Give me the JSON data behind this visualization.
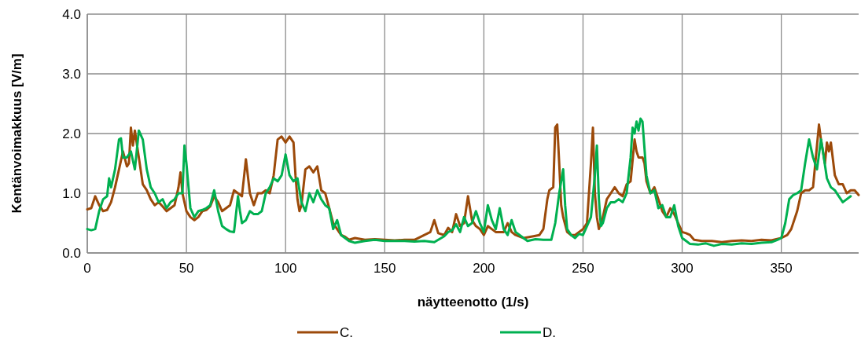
{
  "chart_data": {
    "type": "line",
    "xlabel": "näytteenotto (1/s)",
    "ylabel": "Kentänvoimakkuus [V/m]",
    "xlim": [
      0,
      389
    ],
    "xticks": [
      0,
      50,
      100,
      150,
      200,
      250,
      300,
      350
    ],
    "ylim": [
      0,
      4
    ],
    "yticks": [
      {
        "value": 0,
        "label": "0.0"
      },
      {
        "value": 1,
        "label": "1.0"
      },
      {
        "value": 2,
        "label": "2.0"
      },
      {
        "value": 3,
        "label": "3.0"
      },
      {
        "value": 4,
        "label": "4.0"
      }
    ],
    "grid": true,
    "legend": "bottom",
    "line_style": "solid",
    "series": [
      {
        "name": "C.",
        "color": "#9c4a0a",
        "x": [
          0,
          2,
          4,
          6,
          8,
          10,
          12,
          14,
          16,
          18,
          20,
          21,
          22,
          23,
          24,
          26,
          28,
          30,
          32,
          34,
          36,
          38,
          40,
          42,
          44,
          46,
          47,
          48,
          50,
          52,
          54,
          56,
          58,
          60,
          62,
          64,
          66,
          68,
          70,
          72,
          74,
          76,
          78,
          80,
          82,
          84,
          86,
          88,
          90,
          92,
          94,
          96,
          98,
          100,
          102,
          104,
          105,
          106,
          107,
          108,
          110,
          112,
          114,
          116,
          118,
          120,
          122,
          124,
          126,
          128,
          130,
          132,
          135,
          140,
          145,
          150,
          155,
          160,
          165,
          170,
          173,
          175,
          177,
          180,
          182,
          184,
          186,
          188,
          190,
          192,
          194,
          196,
          198,
          200,
          202,
          204,
          206,
          210,
          212,
          214,
          216,
          220,
          225,
          228,
          230,
          232,
          233,
          235,
          236,
          237,
          238,
          239,
          240,
          242,
          244,
          246,
          248,
          250,
          252,
          254,
          255,
          256,
          257,
          258,
          260,
          262,
          264,
          266,
          268,
          270,
          272,
          274,
          276,
          277,
          278,
          280,
          281,
          282,
          284,
          286,
          288,
          290,
          292,
          294,
          296,
          298,
          300,
          302,
          304,
          306,
          310,
          315,
          320,
          325,
          330,
          335,
          340,
          345,
          350,
          353,
          355,
          358,
          360,
          362,
          364,
          366,
          368,
          369,
          370,
          372,
          373,
          374,
          375,
          377,
          379,
          381,
          383,
          385,
          387,
          389
        ],
        "values": [
          0.73,
          0.75,
          0.95,
          0.8,
          0.7,
          0.72,
          0.85,
          1.1,
          1.4,
          1.7,
          1.45,
          1.5,
          2.1,
          1.8,
          2.05,
          1.6,
          1.15,
          1.05,
          0.9,
          0.8,
          0.85,
          0.78,
          0.7,
          0.75,
          0.8,
          1.1,
          1.35,
          1.0,
          0.7,
          0.6,
          0.55,
          0.6,
          0.7,
          0.72,
          0.78,
          0.95,
          0.85,
          0.7,
          0.75,
          0.8,
          1.05,
          1.0,
          0.95,
          1.57,
          1.0,
          0.8,
          1.0,
          1.0,
          1.05,
          1.0,
          1.3,
          1.9,
          1.95,
          1.85,
          1.95,
          1.85,
          1.3,
          0.9,
          0.7,
          0.8,
          1.4,
          1.45,
          1.35,
          1.45,
          1.05,
          1.0,
          0.75,
          0.5,
          0.4,
          0.3,
          0.27,
          0.22,
          0.25,
          0.22,
          0.23,
          0.22,
          0.21,
          0.22,
          0.22,
          0.3,
          0.35,
          0.55,
          0.33,
          0.3,
          0.42,
          0.35,
          0.65,
          0.45,
          0.5,
          0.95,
          0.55,
          0.45,
          0.4,
          0.3,
          0.45,
          0.4,
          0.35,
          0.35,
          0.5,
          0.35,
          0.3,
          0.25,
          0.28,
          0.3,
          0.4,
          0.9,
          1.05,
          1.1,
          2.1,
          2.15,
          1.5,
          0.8,
          0.6,
          0.35,
          0.3,
          0.3,
          0.35,
          0.4,
          0.5,
          1.5,
          2.1,
          1.0,
          0.6,
          0.4,
          0.6,
          0.9,
          1.0,
          1.1,
          1.0,
          0.95,
          1.15,
          1.2,
          1.9,
          1.7,
          1.6,
          1.6,
          1.5,
          1.2,
          1.0,
          1.1,
          0.9,
          0.7,
          0.6,
          0.75,
          0.65,
          0.5,
          0.35,
          0.33,
          0.3,
          0.22,
          0.2,
          0.2,
          0.18,
          0.2,
          0.21,
          0.2,
          0.22,
          0.21,
          0.25,
          0.3,
          0.4,
          0.7,
          1.0,
          1.05,
          1.05,
          1.1,
          1.8,
          2.15,
          1.9,
          1.5,
          1.85,
          1.7,
          1.85,
          1.3,
          1.15,
          1.15,
          1.0,
          1.05,
          1.05,
          0.97
        ]
      },
      {
        "name": "D.",
        "color": "#00b050",
        "x": [
          0,
          2,
          4,
          6,
          8,
          10,
          11,
          12,
          14,
          16,
          17,
          18,
          20,
          22,
          24,
          26,
          28,
          30,
          32,
          34,
          36,
          38,
          40,
          42,
          44,
          46,
          48,
          49,
          50,
          52,
          54,
          56,
          58,
          60,
          62,
          64,
          66,
          68,
          70,
          72,
          74,
          76,
          77,
          78,
          80,
          82,
          84,
          86,
          88,
          90,
          92,
          94,
          96,
          98,
          100,
          102,
          104,
          106,
          108,
          110,
          112,
          114,
          116,
          118,
          120,
          122,
          124,
          126,
          128,
          130,
          132,
          135,
          140,
          145,
          150,
          160,
          165,
          170,
          175,
          180,
          182,
          184,
          186,
          188,
          190,
          192,
          194,
          196,
          198,
          200,
          202,
          204,
          206,
          208,
          210,
          212,
          214,
          216,
          220,
          222,
          226,
          230,
          234,
          236,
          238,
          240,
          241,
          242,
          244,
          246,
          248,
          250,
          252,
          254,
          256,
          257,
          258,
          259,
          260,
          262,
          264,
          266,
          268,
          270,
          272,
          274,
          275,
          276,
          277,
          278,
          279,
          280,
          282,
          284,
          286,
          288,
          290,
          292,
          294,
          296,
          298,
          300,
          302,
          304,
          308,
          312,
          316,
          320,
          325,
          330,
          335,
          340,
          345,
          348,
          350,
          352,
          354,
          356,
          358,
          360,
          362,
          364,
          366,
          368,
          370,
          371,
          373,
          375,
          377,
          379,
          381,
          383,
          385
        ],
        "values": [
          0.4,
          0.38,
          0.4,
          0.7,
          0.9,
          0.95,
          1.25,
          1.1,
          1.4,
          1.9,
          1.92,
          1.6,
          1.6,
          1.7,
          1.4,
          2.05,
          1.9,
          1.4,
          1.1,
          1.0,
          0.85,
          0.9,
          0.75,
          0.85,
          0.9,
          1.0,
          1.0,
          1.8,
          1.5,
          0.75,
          0.6,
          0.7,
          0.72,
          0.75,
          0.8,
          1.05,
          0.7,
          0.45,
          0.4,
          0.36,
          0.35,
          0.95,
          0.7,
          0.5,
          0.55,
          0.7,
          0.65,
          0.65,
          0.7,
          1.0,
          1.1,
          1.25,
          1.2,
          1.3,
          1.65,
          1.3,
          1.2,
          1.25,
          0.85,
          0.7,
          1.0,
          0.85,
          1.05,
          0.9,
          0.8,
          0.75,
          0.4,
          0.55,
          0.3,
          0.25,
          0.2,
          0.17,
          0.2,
          0.22,
          0.2,
          0.2,
          0.19,
          0.2,
          0.18,
          0.28,
          0.35,
          0.38,
          0.48,
          0.35,
          0.6,
          0.45,
          0.5,
          0.7,
          0.5,
          0.35,
          0.8,
          0.55,
          0.4,
          0.75,
          0.4,
          0.3,
          0.55,
          0.35,
          0.25,
          0.2,
          0.23,
          0.22,
          0.22,
          0.5,
          1.0,
          1.4,
          0.8,
          0.4,
          0.3,
          0.25,
          0.32,
          0.3,
          0.45,
          0.6,
          1.3,
          1.8,
          0.9,
          0.45,
          0.5,
          0.75,
          0.85,
          0.85,
          0.9,
          0.85,
          1.0,
          1.6,
          2.1,
          2.0,
          2.2,
          2.05,
          2.25,
          2.2,
          1.3,
          1.0,
          1.05,
          0.75,
          0.8,
          0.6,
          0.6,
          0.8,
          0.45,
          0.25,
          0.2,
          0.15,
          0.14,
          0.16,
          0.12,
          0.15,
          0.14,
          0.16,
          0.15,
          0.17,
          0.18,
          0.22,
          0.25,
          0.5,
          0.9,
          0.97,
          1.0,
          1.05,
          1.5,
          1.9,
          1.6,
          1.4,
          1.9,
          1.7,
          1.25,
          1.1,
          1.05,
          0.95,
          0.85,
          0.9,
          0.95
        ]
      }
    ]
  }
}
